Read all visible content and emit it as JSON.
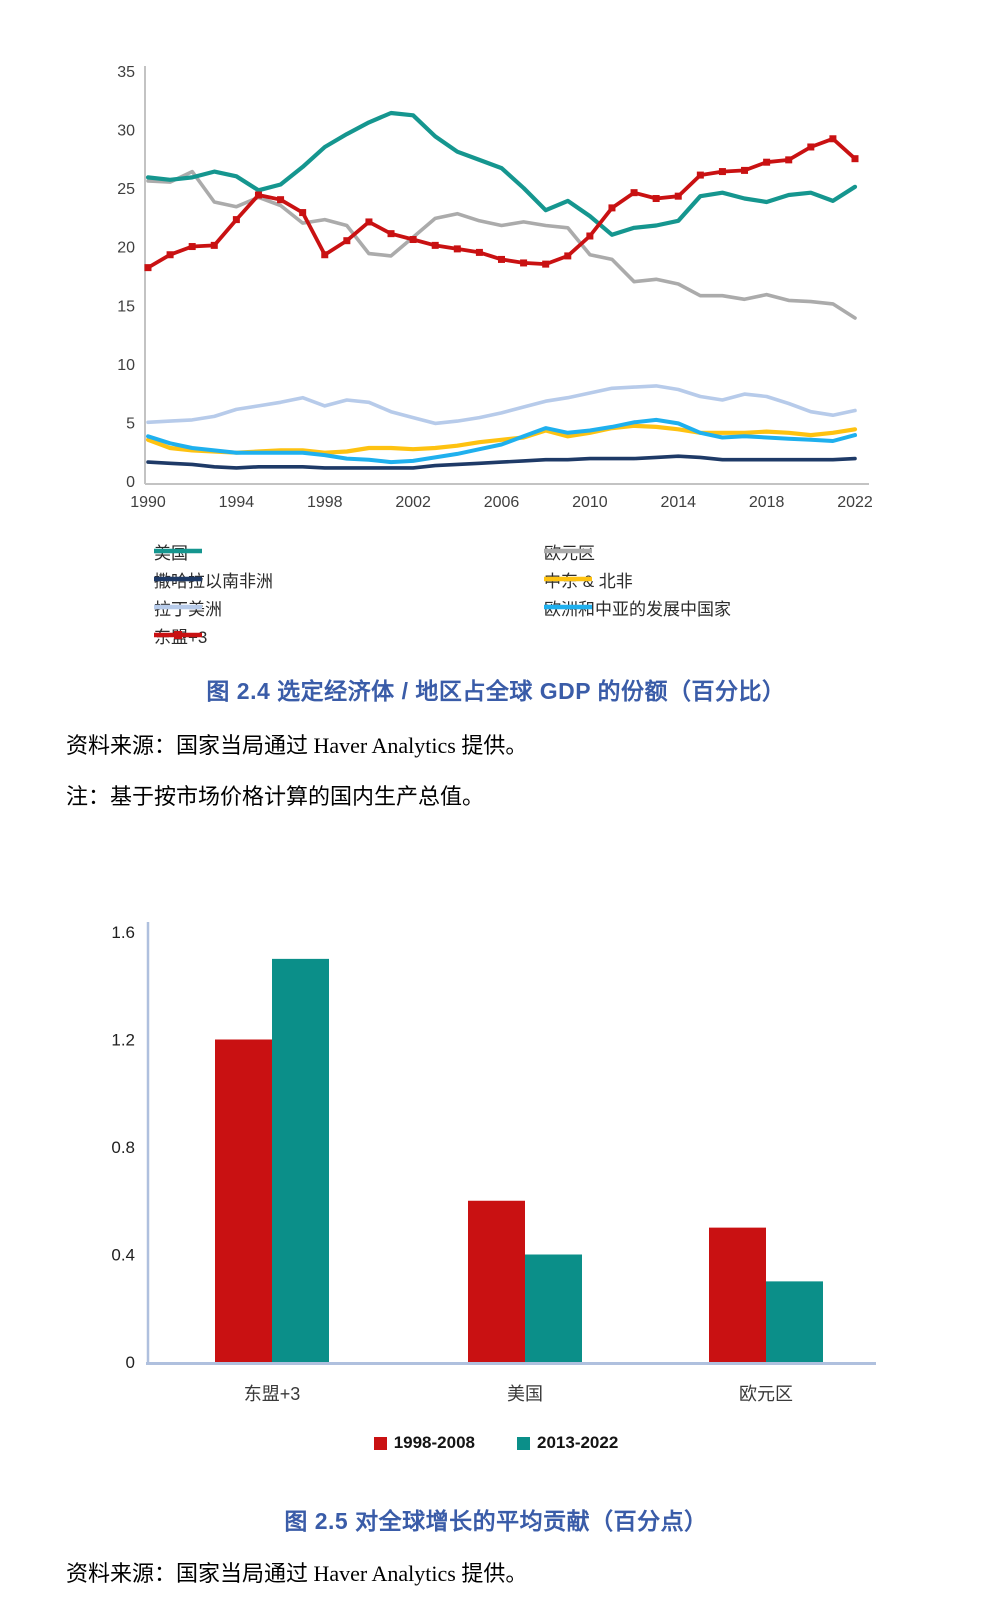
{
  "colors": {
    "title_blue": "#3a5ca8",
    "line_axis_gray": "#c3c3c3",
    "bar_axis_periwinkle": "#afc0de",
    "red": "#c91112",
    "teal": "#15968f",
    "bar_teal": "#0b8f89"
  },
  "chart_data": [
    {
      "id": "fig24",
      "type": "line",
      "title": "图 2.4 选定经济体 / 地区占全球 GDP 的份额（百分比）",
      "source": "资料来源：国家当局通过 Haver Analytics 提供。",
      "note": "注：基于按市场价格计算的国内生产总值。",
      "xlabel": "",
      "ylabel": "",
      "grid": false,
      "legend_position": "bottom",
      "ylim": [
        0,
        35
      ],
      "y_ticks": [
        0,
        5,
        10,
        15,
        20,
        25,
        30,
        35
      ],
      "x_ticks": [
        1990,
        1994,
        1998,
        2002,
        2006,
        2010,
        2014,
        2018,
        2022
      ],
      "x": [
        1990,
        1991,
        1992,
        1993,
        1994,
        1995,
        1996,
        1997,
        1998,
        1999,
        2000,
        2001,
        2002,
        2003,
        2004,
        2005,
        2006,
        2007,
        2008,
        2009,
        2010,
        2011,
        2012,
        2013,
        2014,
        2015,
        2016,
        2017,
        2018,
        2019,
        2020,
        2021,
        2022
      ],
      "series": [
        {
          "name": "美国",
          "color": "#15968f",
          "width": 4.2,
          "marker": false,
          "values": [
            26.0,
            25.8,
            26.0,
            26.5,
            26.1,
            24.9,
            25.4,
            26.9,
            28.6,
            29.7,
            30.7,
            31.5,
            31.3,
            29.5,
            28.2,
            27.5,
            26.8,
            25.1,
            23.2,
            24.0,
            22.7,
            21.1,
            21.7,
            21.9,
            22.3,
            24.4,
            24.7,
            24.2,
            23.9,
            24.5,
            24.7,
            24.0,
            25.2
          ]
        },
        {
          "name": "欧元区",
          "color": "#ababab",
          "width": 3.6,
          "marker": false,
          "values": [
            25.7,
            25.6,
            26.5,
            23.9,
            23.5,
            24.3,
            23.6,
            22.1,
            22.4,
            21.9,
            19.5,
            19.3,
            20.9,
            22.5,
            22.9,
            22.3,
            21.9,
            22.2,
            21.9,
            21.7,
            19.4,
            19.0,
            17.1,
            17.3,
            16.9,
            15.9,
            15.9,
            15.6,
            16.0,
            15.5,
            15.4,
            15.2,
            14.0
          ]
        },
        {
          "name": "撒哈拉以南非洲",
          "color": "#1e3a67",
          "width": 3.6,
          "marker": false,
          "values": [
            1.7,
            1.6,
            1.5,
            1.3,
            1.2,
            1.3,
            1.3,
            1.3,
            1.2,
            1.2,
            1.2,
            1.2,
            1.2,
            1.4,
            1.5,
            1.6,
            1.7,
            1.8,
            1.9,
            1.9,
            2.0,
            2.0,
            2.0,
            2.1,
            2.2,
            2.1,
            1.9,
            1.9,
            1.9,
            1.9,
            1.9,
            1.9,
            2.0
          ]
        },
        {
          "name": "中东 & 北非",
          "color": "#fec211",
          "width": 4.2,
          "marker": false,
          "values": [
            3.6,
            2.9,
            2.7,
            2.6,
            2.5,
            2.6,
            2.7,
            2.7,
            2.5,
            2.6,
            2.9,
            2.9,
            2.8,
            2.9,
            3.1,
            3.4,
            3.6,
            3.8,
            4.4,
            3.9,
            4.2,
            4.6,
            4.8,
            4.7,
            4.5,
            4.2,
            4.2,
            4.2,
            4.3,
            4.2,
            4.0,
            4.2,
            4.5
          ]
        },
        {
          "name": "拉丁美洲",
          "color": "#b7cbea",
          "width": 3.6,
          "marker": false,
          "values": [
            5.1,
            5.2,
            5.3,
            5.6,
            6.2,
            6.5,
            6.8,
            7.2,
            6.5,
            7.0,
            6.8,
            6.0,
            5.5,
            5.0,
            5.2,
            5.5,
            5.9,
            6.4,
            6.9,
            7.2,
            7.6,
            8.0,
            8.1,
            8.2,
            7.9,
            7.3,
            7.0,
            7.5,
            7.3,
            6.7,
            6.0,
            5.7,
            6.1
          ]
        },
        {
          "name": "欧洲和中亚的发展中国家",
          "color": "#1fb0ee",
          "width": 4.0,
          "marker": false,
          "values": [
            3.9,
            3.3,
            2.9,
            2.7,
            2.5,
            2.5,
            2.5,
            2.5,
            2.3,
            2.0,
            1.9,
            1.7,
            1.8,
            2.1,
            2.4,
            2.8,
            3.2,
            3.9,
            4.6,
            4.2,
            4.4,
            4.7,
            5.1,
            5.3,
            5.0,
            4.2,
            3.8,
            3.9,
            3.8,
            3.7,
            3.6,
            3.5,
            4.0
          ]
        },
        {
          "name": "东盟+3",
          "color": "#c91112",
          "width": 3.8,
          "marker": true,
          "values": [
            18.3,
            19.4,
            20.1,
            20.2,
            22.4,
            24.5,
            24.1,
            23.0,
            19.4,
            20.6,
            22.2,
            21.2,
            20.7,
            20.2,
            19.9,
            19.6,
            19.0,
            18.7,
            18.6,
            19.3,
            21.0,
            23.4,
            24.7,
            24.2,
            24.4,
            26.2,
            26.5,
            26.6,
            27.3,
            27.5,
            28.6,
            29.3,
            27.6
          ]
        }
      ]
    },
    {
      "id": "fig25",
      "type": "bar",
      "title": "图 2.5 对全球增长的平均贡献（百分点）",
      "source": "资料来源：国家当局通过 Haver Analytics 提供。",
      "xlabel": "",
      "ylabel": "",
      "grid": false,
      "legend_position": "bottom",
      "ylim": [
        0,
        1.6
      ],
      "y_ticks": [
        "0",
        "0.4",
        "0.8",
        "1.2",
        "1.6"
      ],
      "categories": [
        "东盟+3",
        "美国",
        "欧元区"
      ],
      "series": [
        {
          "name": "1998-2008",
          "color": "#c91112",
          "values": [
            1.2,
            0.6,
            0.5
          ]
        },
        {
          "name": "2013-2022",
          "color": "#0b8f89",
          "values": [
            1.5,
            0.4,
            0.3
          ]
        }
      ]
    }
  ]
}
